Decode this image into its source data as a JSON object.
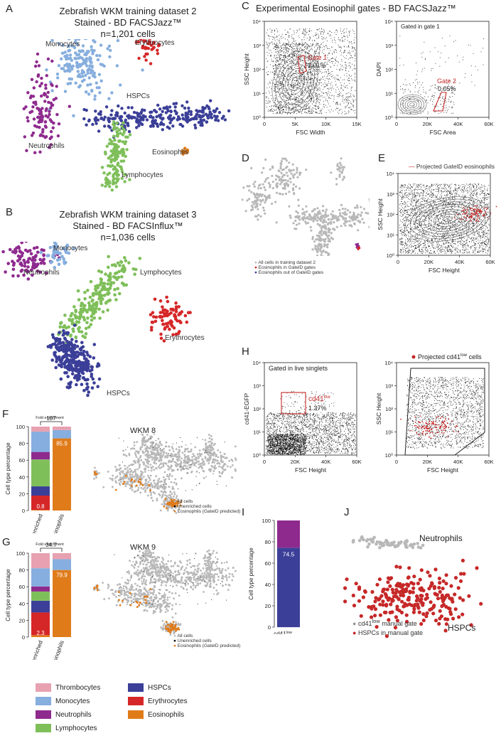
{
  "panels": {
    "A": {
      "letter": "A",
      "title_lines": [
        "Zebrafish WKM training dataset 2",
        "Stained - BD FACSJazz™",
        "n=1,201 cells"
      ],
      "clusters": {
        "monocytes": "Monocytes",
        "erythrocytes": "Erythrocytes",
        "hspcs": "HSPCs",
        "neutrophils": "Neutrophils",
        "eosinophils": "Eosinophils",
        "lymphocytes": "Lymphocytes"
      }
    },
    "B": {
      "letter": "B",
      "title_lines": [
        "Zebrafish WKM training dataset 3",
        "Stained - BD FACSInflux™",
        "n=1,036 cells"
      ],
      "clusters": {
        "monocytes": "Monocytes",
        "neutrophils": "Neutrophils",
        "lymphocytes": "Lymphocytes",
        "erythrocytes": "Erythrocytes",
        "hspcs": "HSPCs"
      }
    },
    "C": {
      "letter": "C",
      "title": "Experimental Eosinophil gates - BD FACSJazz™",
      "left": {
        "ylabel": "SSC Height",
        "xlabel": "FSC Width",
        "yticks": [
          "10⁰",
          "10¹",
          "10²",
          "10³",
          "10⁴"
        ],
        "xticks": [
          "0",
          "5K",
          "10K",
          "15K"
        ],
        "gate_name": "Gate 1",
        "gate_pct": "3.01%"
      },
      "right": {
        "ylabel": "DAPI",
        "xlabel": "FSC Area",
        "note": "Gated in gate 1",
        "yticks": [
          "10⁰",
          "10¹",
          "10²",
          "10³",
          "10⁴"
        ],
        "xticks": [
          "0",
          "20K",
          "40K",
          "60K"
        ],
        "gate_name": "Gate 2",
        "gate_pct": "0.05%"
      }
    },
    "D": {
      "letter": "D",
      "legend": [
        "All cells in training dataset 2",
        "Eosinophils in GateID gates",
        "Eosinophils out of GateID gates"
      ]
    },
    "E": {
      "letter": "E",
      "legend": "Projected GateID eosinophils",
      "ylabel": "SSC Height",
      "xlabel": "FSC Height",
      "yticks": [
        "10⁰",
        "10¹",
        "10²",
        "10³",
        "10⁴"
      ],
      "xticks": [
        "0",
        "20K",
        "40K",
        "60K"
      ]
    },
    "F": {
      "letter": "F",
      "ylabel": "Cell type percentage",
      "yticks": [
        "0",
        "20",
        "40",
        "60",
        "80",
        "100"
      ],
      "bar_labels": [
        "Unenriched",
        "Eosinophils"
      ],
      "fold_label": "Fold enrichment",
      "fold_value": "107",
      "value_unenriched": "0.8",
      "value_eos": "85.9",
      "umap_title": "WKM 8",
      "umap_legend": [
        "All cells",
        "Unenriched cells",
        "Eosinophils (GateID predicted)"
      ]
    },
    "G": {
      "letter": "G",
      "ylabel": "Cell type percentage",
      "yticks": [
        "0",
        "20",
        "40",
        "60",
        "80",
        "100"
      ],
      "bar_labels": [
        "Unenriched",
        "Eosinophils"
      ],
      "fold_label": "Fold enrichment",
      "fold_value": "34.7",
      "value_unenriched": "2.3",
      "value_eos": "79.9",
      "umap_title": "WKM 9",
      "umap_legend": [
        "All cells",
        "Unenriched cells",
        "Eosinophils (GateID predicted)"
      ]
    },
    "H": {
      "letter": "H",
      "left": {
        "note": "Gated in live singlets",
        "ylabel": "cd41-EGFP",
        "xlabel": "FSC Height",
        "gate_name": "cd41",
        "gate_sup": "low",
        "gate_pct": "1.37%",
        "yticks": [
          "10⁰",
          "10¹",
          "10²",
          "10³",
          "10⁴"
        ],
        "xticks": [
          "0",
          "20K",
          "40K",
          "60K"
        ]
      },
      "right": {
        "legend": "Projected cd41",
        "legend_sup": "low",
        "legend_tail": " cells",
        "ylabel": "SSC Height",
        "xlabel": "FSC Height",
        "yticks": [
          "10⁰",
          "10¹",
          "10²",
          "10³",
          "10⁴"
        ],
        "xticks": [
          "0",
          "20K",
          "40K",
          "60K"
        ]
      }
    },
    "I": {
      "letter": "I",
      "ylabel": "Cell type percentage",
      "yticks": [
        "0",
        "20",
        "40",
        "60",
        "80",
        "100"
      ],
      "bar_label": "cd41",
      "bar_label_sup": "low",
      "value": "74.5"
    },
    "J": {
      "letter": "J",
      "neutrophils": "Neutrophils",
      "hspcs": "HSPCs",
      "legend1": "cd41",
      "legend1_sup": "low",
      "legend1_tail": " manual gate",
      "legend2": "HSPCs in manual gate"
    }
  },
  "legend": {
    "items": [
      {
        "label": "Thrombocytes",
        "color": "#e7a1b0"
      },
      {
        "label": "HSPCs",
        "color": "#3b3f98"
      },
      {
        "label": "Monocytes",
        "color": "#86aede"
      },
      {
        "label": "Erythrocytes",
        "color": "#d62728"
      },
      {
        "label": "Neutrophils",
        "color": "#8e2a8e"
      },
      {
        "label": "Eosinophils",
        "color": "#e07b1a"
      },
      {
        "label": "Lymphocytes",
        "color": "#7fbf5a"
      }
    ]
  },
  "colors": {
    "thrombocytes": "#e7a1b0",
    "monocytes": "#86aede",
    "neutrophils": "#8e2a8e",
    "lymphocytes": "#7fbf5a",
    "hspcs": "#3b3f98",
    "erythrocytes": "#d62728",
    "eosinophils": "#e07b1a",
    "grey": "#b8b8b8",
    "gate": "#c62828"
  },
  "chart_data": [
    {
      "type": "bar",
      "name": "F",
      "categories": [
        "Unenriched",
        "Eosinophils"
      ],
      "ylim": [
        0,
        100
      ],
      "series": [
        {
          "name": "Eosinophils",
          "values": [
            0.8,
            85.9
          ]
        },
        {
          "name": "Erythrocytes",
          "values": [
            17,
            0
          ]
        },
        {
          "name": "HSPCs",
          "values": [
            11,
            0
          ]
        },
        {
          "name": "Lymphocytes",
          "values": [
            32,
            0
          ]
        },
        {
          "name": "Neutrophils",
          "values": [
            9,
            0
          ]
        },
        {
          "name": "Monocytes",
          "values": [
            24.2,
            10
          ]
        },
        {
          "name": "Thrombocytes",
          "values": [
            6,
            4.1
          ]
        }
      ]
    },
    {
      "type": "bar",
      "name": "G",
      "categories": [
        "Unenriched",
        "Eosinophils"
      ],
      "ylim": [
        0,
        100
      ],
      "series": [
        {
          "name": "Eosinophils",
          "values": [
            2.3,
            79.9
          ]
        },
        {
          "name": "Erythrocytes",
          "values": [
            27,
            0
          ]
        },
        {
          "name": "HSPCs",
          "values": [
            14,
            0
          ]
        },
        {
          "name": "Lymphocytes",
          "values": [
            11,
            0
          ]
        },
        {
          "name": "Neutrophils",
          "values": [
            6,
            0
          ]
        },
        {
          "name": "Monocytes",
          "values": [
            21.7,
            13
          ]
        },
        {
          "name": "Thrombocytes",
          "values": [
            18,
            7.1
          ]
        }
      ]
    },
    {
      "type": "bar",
      "name": "I",
      "categories": [
        "cd41low"
      ],
      "ylim": [
        0,
        100
      ],
      "series": [
        {
          "name": "HSPCs",
          "values": [
            74.5
          ]
        },
        {
          "name": "Neutrophils",
          "values": [
            25.5
          ]
        }
      ]
    }
  ]
}
